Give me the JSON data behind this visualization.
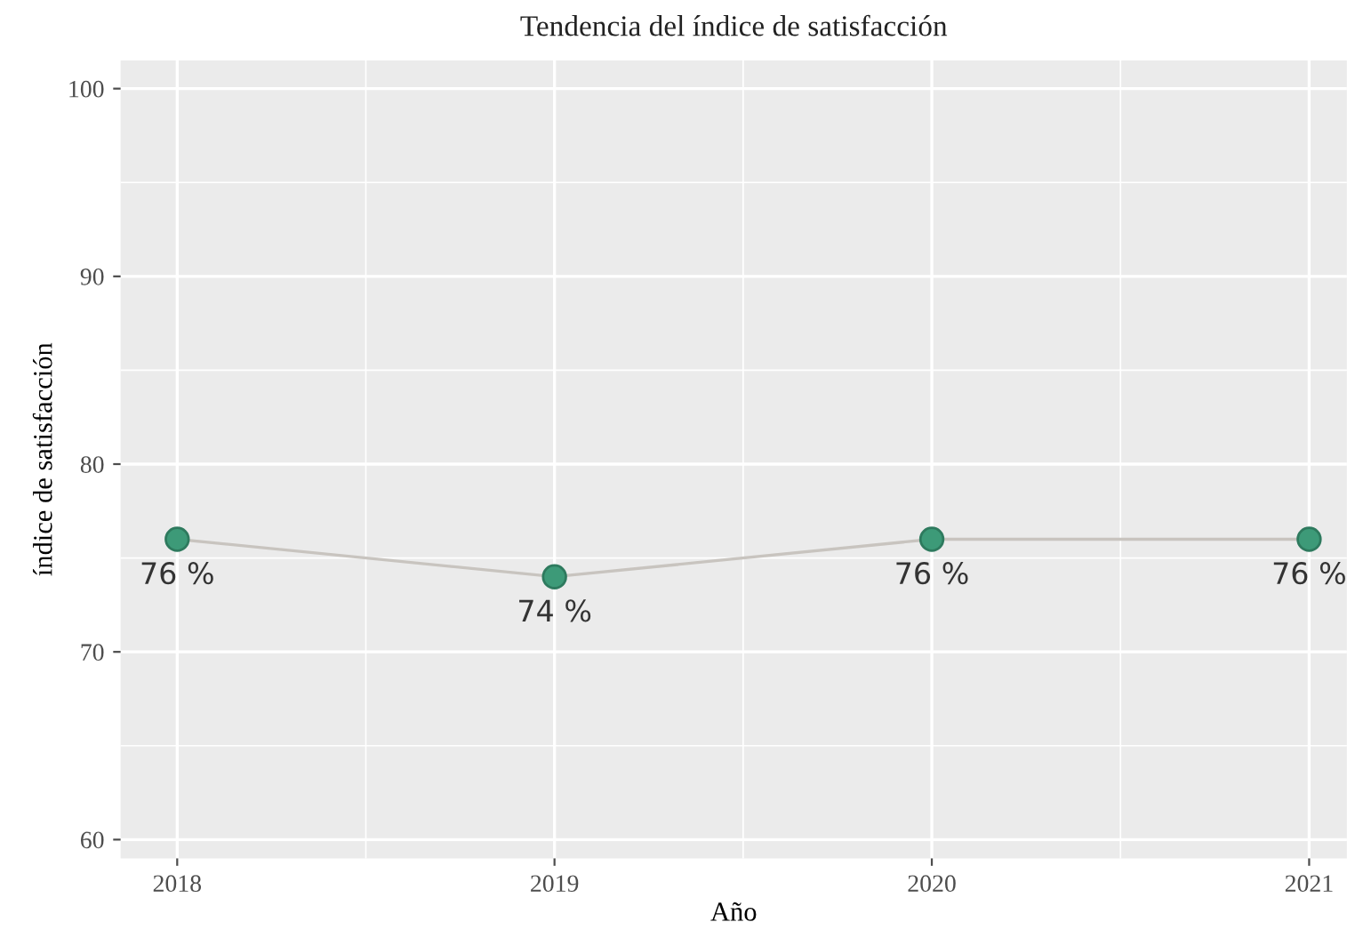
{
  "chart_data": {
    "type": "line",
    "title": "Tendencia del índice de satisfacción",
    "xlabel": "Año",
    "ylabel": "índice de satisfacción",
    "x": [
      2018,
      2019,
      2020,
      2021
    ],
    "series": [
      {
        "color": "#c8c4bf",
        "values": [
          76,
          74,
          76,
          76
        ],
        "value_labels": [
          "76 %",
          "74 %",
          "76 %",
          "76 %"
        ],
        "colors": [
          "#3d9a78",
          "#3d9a78",
          "#3d9a78",
          "#3d9a78"
        ]
      }
    ],
    "xlim": [
      2017.85,
      2021.1
    ],
    "xticks": [
      2018,
      2019,
      2020,
      2021
    ],
    "ylim": [
      59,
      101.5
    ],
    "yticks": [
      60,
      70,
      80,
      90,
      100
    ],
    "grid": true,
    "marker": "circle",
    "line_style": "solid"
  }
}
